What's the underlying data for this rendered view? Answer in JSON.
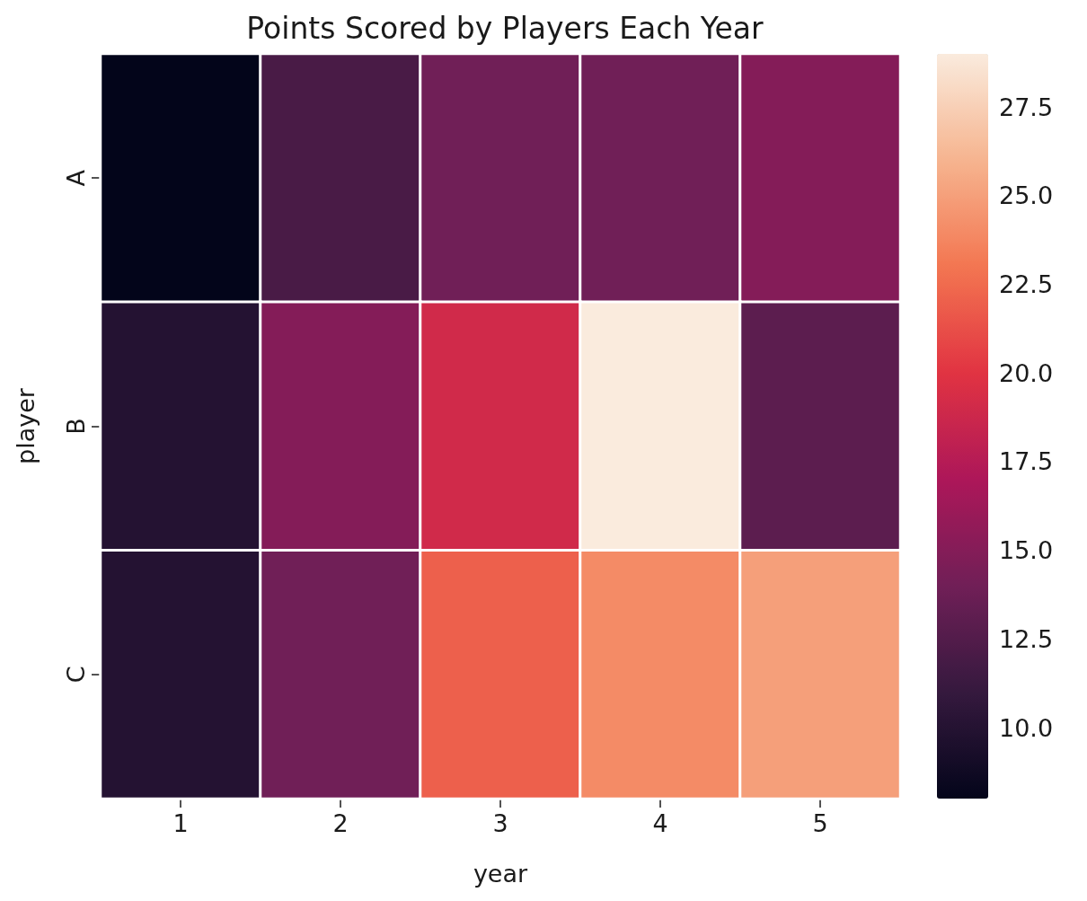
{
  "chart_data": {
    "type": "heatmap",
    "title": "Points Scored by Players Each Year",
    "xlabel": "year",
    "ylabel": "player",
    "categories": [
      "1",
      "2",
      "3",
      "4",
      "5"
    ],
    "y_categories": [
      "A",
      "B",
      "C"
    ],
    "cells": [
      [
        8,
        12,
        14,
        14,
        15
      ],
      [
        10,
        15,
        19,
        29,
        13
      ],
      [
        10,
        14,
        22,
        24,
        25
      ]
    ],
    "clim": [
      8,
      29
    ],
    "cticks": [
      {
        "value": 10,
        "label": "10.0"
      },
      {
        "value": 12.5,
        "label": "12.5"
      },
      {
        "value": 15,
        "label": "15.0"
      },
      {
        "value": 17.5,
        "label": "17.5"
      },
      {
        "value": 20,
        "label": "20.0"
      },
      {
        "value": 22.5,
        "label": "22.5"
      },
      {
        "value": 25,
        "label": "25.0"
      },
      {
        "value": 27.5,
        "label": "27.5"
      }
    ]
  }
}
